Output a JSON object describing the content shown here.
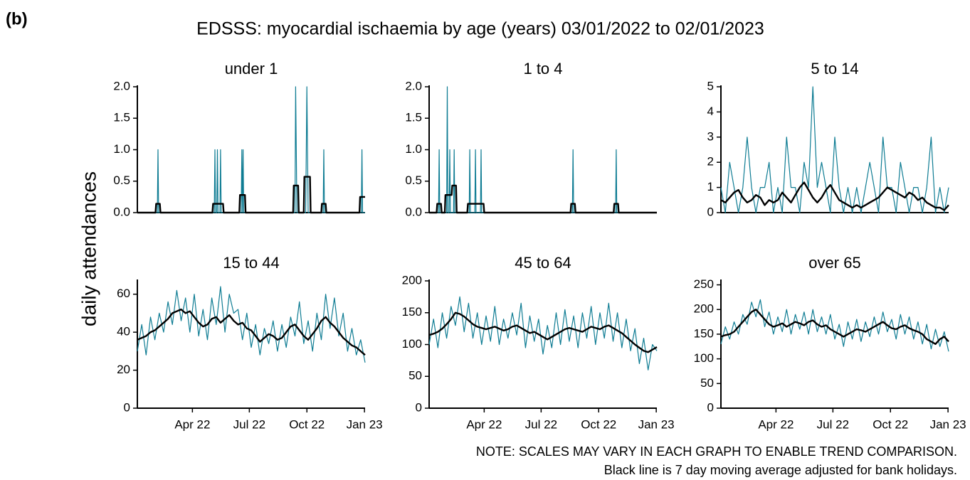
{
  "figure": {
    "label": "(b)",
    "title": "EDSSS: myocardial ischaemia by age (years) 03/01/2022 to 02/01/2023",
    "ylabel": "daily attendances",
    "notes": [
      "NOTE: SCALES MAY VARY IN EACH GRAPH TO ENABLE TREND COMPARISON.",
      "Black line is 7 day moving average adjusted for bank holidays."
    ]
  },
  "chart_data": [
    {
      "type": "line",
      "title": "under 1",
      "xlim": [
        0,
        364
      ],
      "ylim": [
        0,
        2
      ],
      "yticks": [
        {
          "value": 0,
          "label": "0.0"
        },
        0.5,
        {
          "value": 1,
          "label": "1.0"
        },
        1.5,
        {
          "value": 2,
          "label": "2.0"
        }
      ],
      "series": [
        {
          "color": "#0e7c93",
          "x": [
            0,
            32,
            33,
            34,
            123,
            124,
            125,
            127,
            128,
            129,
            132,
            133,
            134,
            166,
            167,
            168,
            169,
            170,
            252,
            253,
            254,
            255,
            269,
            270,
            271,
            272,
            273,
            297,
            298,
            299,
            358,
            359,
            360,
            364
          ],
          "values": [
            0,
            0,
            1,
            0,
            0,
            1,
            0,
            0,
            1,
            0,
            0,
            1,
            0,
            0,
            1,
            0,
            1,
            0,
            0,
            2,
            1,
            0,
            0,
            1,
            2,
            1,
            0,
            0,
            1,
            0,
            0,
            1,
            0,
            0
          ]
        },
        {
          "color": "#000000",
          "x": [
            0,
            29,
            30,
            36,
            37,
            120,
            121,
            137,
            138,
            163,
            164,
            172,
            173,
            249,
            250,
            257,
            258,
            266,
            267,
            276,
            277,
            294,
            295,
            301,
            302,
            355,
            356,
            364
          ],
          "values": [
            0,
            0,
            0.14,
            0.14,
            0,
            0,
            0.14,
            0.14,
            0,
            0,
            0.28,
            0.28,
            0,
            0,
            0.43,
            0.43,
            0,
            0,
            0.57,
            0.57,
            0,
            0,
            0.14,
            0.14,
            0,
            0,
            0.25,
            0.25
          ]
        }
      ]
    },
    {
      "type": "line",
      "title": "1 to 4",
      "xlim": [
        0,
        364
      ],
      "ylim": [
        0,
        2
      ],
      "yticks": [
        {
          "value": 0,
          "label": "0.0"
        },
        0.5,
        {
          "value": 1,
          "label": "1.0"
        },
        1.5,
        {
          "value": 2,
          "label": "2.0"
        }
      ],
      "series": [
        {
          "color": "#0e7c93",
          "x": [
            0,
            15,
            16,
            17,
            28,
            29,
            30,
            32,
            33,
            34,
            39,
            40,
            41,
            64,
            65,
            66,
            73,
            74,
            75,
            82,
            83,
            84,
            229,
            230,
            231,
            298,
            299,
            300,
            364
          ],
          "values": [
            0,
            0,
            1,
            0,
            0,
            2,
            0,
            0,
            1,
            0,
            0,
            1,
            0,
            0,
            1,
            0,
            0,
            1,
            0,
            0,
            1,
            0,
            0,
            1,
            0,
            0,
            1,
            0,
            0
          ]
        },
        {
          "color": "#000000",
          "x": [
            0,
            12,
            13,
            19,
            20,
            25,
            26,
            36,
            37,
            43,
            44,
            61,
            62,
            87,
            88,
            226,
            227,
            233,
            234,
            295,
            296,
            302,
            303,
            364
          ],
          "values": [
            0,
            0,
            0.14,
            0.14,
            0,
            0,
            0.28,
            0.28,
            0.43,
            0.43,
            0,
            0,
            0.14,
            0.14,
            0,
            0,
            0.14,
            0.14,
            0,
            0,
            0.14,
            0.14,
            0,
            0
          ]
        }
      ]
    },
    {
      "type": "line",
      "title": "5 to 14",
      "xlim": [
        0,
        364
      ],
      "ylim": [
        0,
        5
      ],
      "yticks": [
        0,
        1,
        2,
        3,
        4,
        5
      ],
      "x": [
        0,
        7,
        14,
        21,
        28,
        35,
        42,
        49,
        56,
        63,
        70,
        77,
        84,
        91,
        98,
        105,
        112,
        119,
        126,
        133,
        140,
        147,
        154,
        161,
        168,
        175,
        182,
        189,
        196,
        203,
        210,
        217,
        224,
        231,
        238,
        245,
        252,
        259,
        266,
        273,
        280,
        287,
        294,
        301,
        308,
        315,
        322,
        329,
        336,
        343,
        350,
        357,
        364
      ],
      "series": [
        {
          "color": "#0e7c93",
          "values": [
            1,
            0,
            2,
            1,
            0,
            1,
            3,
            1,
            0,
            1,
            1,
            2,
            0,
            1,
            0,
            3,
            1,
            1,
            0,
            2,
            1,
            5,
            1,
            2,
            1,
            0,
            3,
            1,
            0,
            1,
            0,
            1,
            0,
            1,
            2,
            1,
            0,
            3,
            1,
            1,
            0,
            2,
            1,
            0,
            1,
            1,
            0,
            1,
            3,
            0,
            1,
            0,
            1
          ]
        },
        {
          "color": "#000000",
          "values": [
            0.5,
            0.4,
            0.6,
            0.8,
            0.9,
            0.6,
            0.4,
            0.5,
            0.7,
            0.6,
            0.3,
            0.5,
            0.4,
            0.5,
            0.8,
            0.6,
            0.4,
            0.7,
            1.0,
            1.2,
            0.9,
            0.6,
            0.4,
            0.6,
            0.9,
            1.1,
            0.8,
            0.5,
            0.4,
            0.3,
            0.2,
            0.3,
            0.2,
            0.3,
            0.4,
            0.5,
            0.6,
            0.8,
            1.0,
            0.9,
            0.8,
            0.7,
            0.6,
            0.8,
            0.7,
            0.5,
            0.6,
            0.4,
            0.3,
            0.2,
            0.2,
            0.1,
            0.3
          ]
        }
      ]
    },
    {
      "type": "line",
      "title": "15 to 44",
      "xlim": [
        0,
        364
      ],
      "ylim": [
        0,
        67
      ],
      "yticks": [
        0,
        20,
        40,
        60
      ],
      "xticks": [
        {
          "value": 88,
          "label": "Apr 22"
        },
        {
          "value": 179,
          "label": "Jul 22"
        },
        {
          "value": 271,
          "label": "Oct 22"
        },
        {
          "value": 363,
          "label": "Jan 23"
        }
      ],
      "x": [
        0,
        7,
        14,
        21,
        28,
        35,
        42,
        49,
        56,
        63,
        70,
        77,
        84,
        91,
        98,
        105,
        112,
        119,
        126,
        133,
        140,
        147,
        154,
        161,
        168,
        175,
        182,
        189,
        196,
        203,
        210,
        217,
        224,
        231,
        238,
        245,
        252,
        259,
        266,
        273,
        280,
        287,
        294,
        301,
        308,
        315,
        322,
        329,
        336,
        343,
        350,
        357,
        364
      ],
      "series": [
        {
          "color": "#0e7c93",
          "values": [
            30,
            44,
            28,
            48,
            36,
            50,
            40,
            56,
            44,
            62,
            46,
            58,
            40,
            60,
            38,
            52,
            36,
            58,
            44,
            64,
            40,
            60,
            50,
            52,
            36,
            50,
            32,
            44,
            28,
            42,
            34,
            46,
            30,
            44,
            32,
            48,
            38,
            56,
            34,
            46,
            30,
            50,
            36,
            60,
            42,
            58,
            38,
            50,
            30,
            42,
            28,
            36,
            24
          ]
        },
        {
          "color": "#000000",
          "values": [
            36,
            37,
            38,
            40,
            41,
            43,
            45,
            47,
            50,
            51,
            52,
            50,
            51,
            48,
            45,
            43,
            44,
            47,
            48,
            45,
            47,
            49,
            46,
            44,
            45,
            42,
            41,
            38,
            35,
            37,
            39,
            38,
            36,
            37,
            40,
            43,
            44,
            41,
            38,
            36,
            39,
            42,
            46,
            48,
            45,
            43,
            40,
            37,
            35,
            33,
            32,
            30,
            28
          ]
        }
      ]
    },
    {
      "type": "line",
      "title": "45 to 64",
      "xlim": [
        0,
        364
      ],
      "ylim": [
        0,
        200
      ],
      "yticks": [
        0,
        50,
        100,
        150,
        200
      ],
      "xticks": [
        {
          "value": 88,
          "label": "Apr 22"
        },
        {
          "value": 179,
          "label": "Jul 22"
        },
        {
          "value": 271,
          "label": "Oct 22"
        },
        {
          "value": 363,
          "label": "Jan 23"
        }
      ],
      "x": [
        0,
        7,
        14,
        21,
        28,
        35,
        42,
        49,
        56,
        63,
        70,
        77,
        84,
        91,
        98,
        105,
        112,
        119,
        126,
        133,
        140,
        147,
        154,
        161,
        168,
        175,
        182,
        189,
        196,
        203,
        210,
        217,
        224,
        231,
        238,
        245,
        252,
        259,
        266,
        273,
        280,
        287,
        294,
        301,
        308,
        315,
        322,
        329,
        336,
        343,
        350,
        357,
        364
      ],
      "series": [
        {
          "color": "#0e7c93",
          "values": [
            100,
            140,
            95,
            150,
            110,
            160,
            130,
            175,
            120,
            165,
            110,
            150,
            100,
            145,
            105,
            160,
            100,
            140,
            110,
            150,
            115,
            165,
            95,
            145,
            105,
            140,
            85,
            130,
            95,
            150,
            100,
            155,
            105,
            145,
            95,
            150,
            110,
            160,
            100,
            150,
            110,
            165,
            105,
            150,
            95,
            140,
            90,
            125,
            70,
            110,
            60,
            100,
            90
          ]
        },
        {
          "color": "#000000",
          "values": [
            115,
            117,
            120,
            125,
            132,
            140,
            150,
            148,
            144,
            138,
            132,
            128,
            126,
            124,
            126,
            128,
            125,
            122,
            124,
            128,
            130,
            126,
            122,
            118,
            120,
            116,
            112,
            108,
            112,
            116,
            120,
            124,
            126,
            124,
            122,
            120,
            124,
            128,
            126,
            124,
            128,
            130,
            126,
            122,
            118,
            112,
            106,
            100,
            95,
            90,
            88,
            92,
            96
          ]
        }
      ]
    },
    {
      "type": "line",
      "title": "over 65",
      "xlim": [
        0,
        364
      ],
      "ylim": [
        0,
        258
      ],
      "yticks": [
        0,
        50,
        100,
        150,
        200,
        250
      ],
      "xticks": [
        {
          "value": 88,
          "label": "Apr 22"
        },
        {
          "value": 179,
          "label": "Jul 22"
        },
        {
          "value": 271,
          "label": "Oct 22"
        },
        {
          "value": 363,
          "label": "Jan 23"
        }
      ],
      "x": [
        0,
        7,
        14,
        21,
        28,
        35,
        42,
        49,
        56,
        63,
        70,
        77,
        84,
        91,
        98,
        105,
        112,
        119,
        126,
        133,
        140,
        147,
        154,
        161,
        168,
        175,
        182,
        189,
        196,
        203,
        210,
        217,
        224,
        231,
        238,
        245,
        252,
        259,
        266,
        273,
        280,
        287,
        294,
        301,
        308,
        315,
        322,
        329,
        336,
        343,
        350,
        357,
        364
      ],
      "series": [
        {
          "color": "#0e7c93",
          "values": [
            130,
            165,
            140,
            175,
            150,
            190,
            170,
            215,
            185,
            220,
            165,
            195,
            150,
            185,
            155,
            200,
            150,
            190,
            160,
            195,
            150,
            200,
            155,
            185,
            150,
            190,
            140,
            170,
            125,
            175,
            140,
            180,
            135,
            175,
            145,
            185,
            150,
            195,
            155,
            180,
            140,
            190,
            150,
            185,
            140,
            175,
            130,
            170,
            120,
            160,
            125,
            155,
            115
          ]
        },
        {
          "color": "#000000",
          "values": [
            145,
            148,
            150,
            155,
            165,
            175,
            185,
            195,
            200,
            190,
            180,
            170,
            165,
            168,
            172,
            165,
            170,
            175,
            172,
            168,
            175,
            178,
            170,
            165,
            168,
            160,
            155,
            150,
            145,
            150,
            155,
            160,
            158,
            155,
            160,
            165,
            170,
            175,
            168,
            162,
            160,
            165,
            168,
            162,
            158,
            155,
            150,
            140,
            135,
            130,
            140,
            145,
            135
          ]
        }
      ]
    }
  ]
}
